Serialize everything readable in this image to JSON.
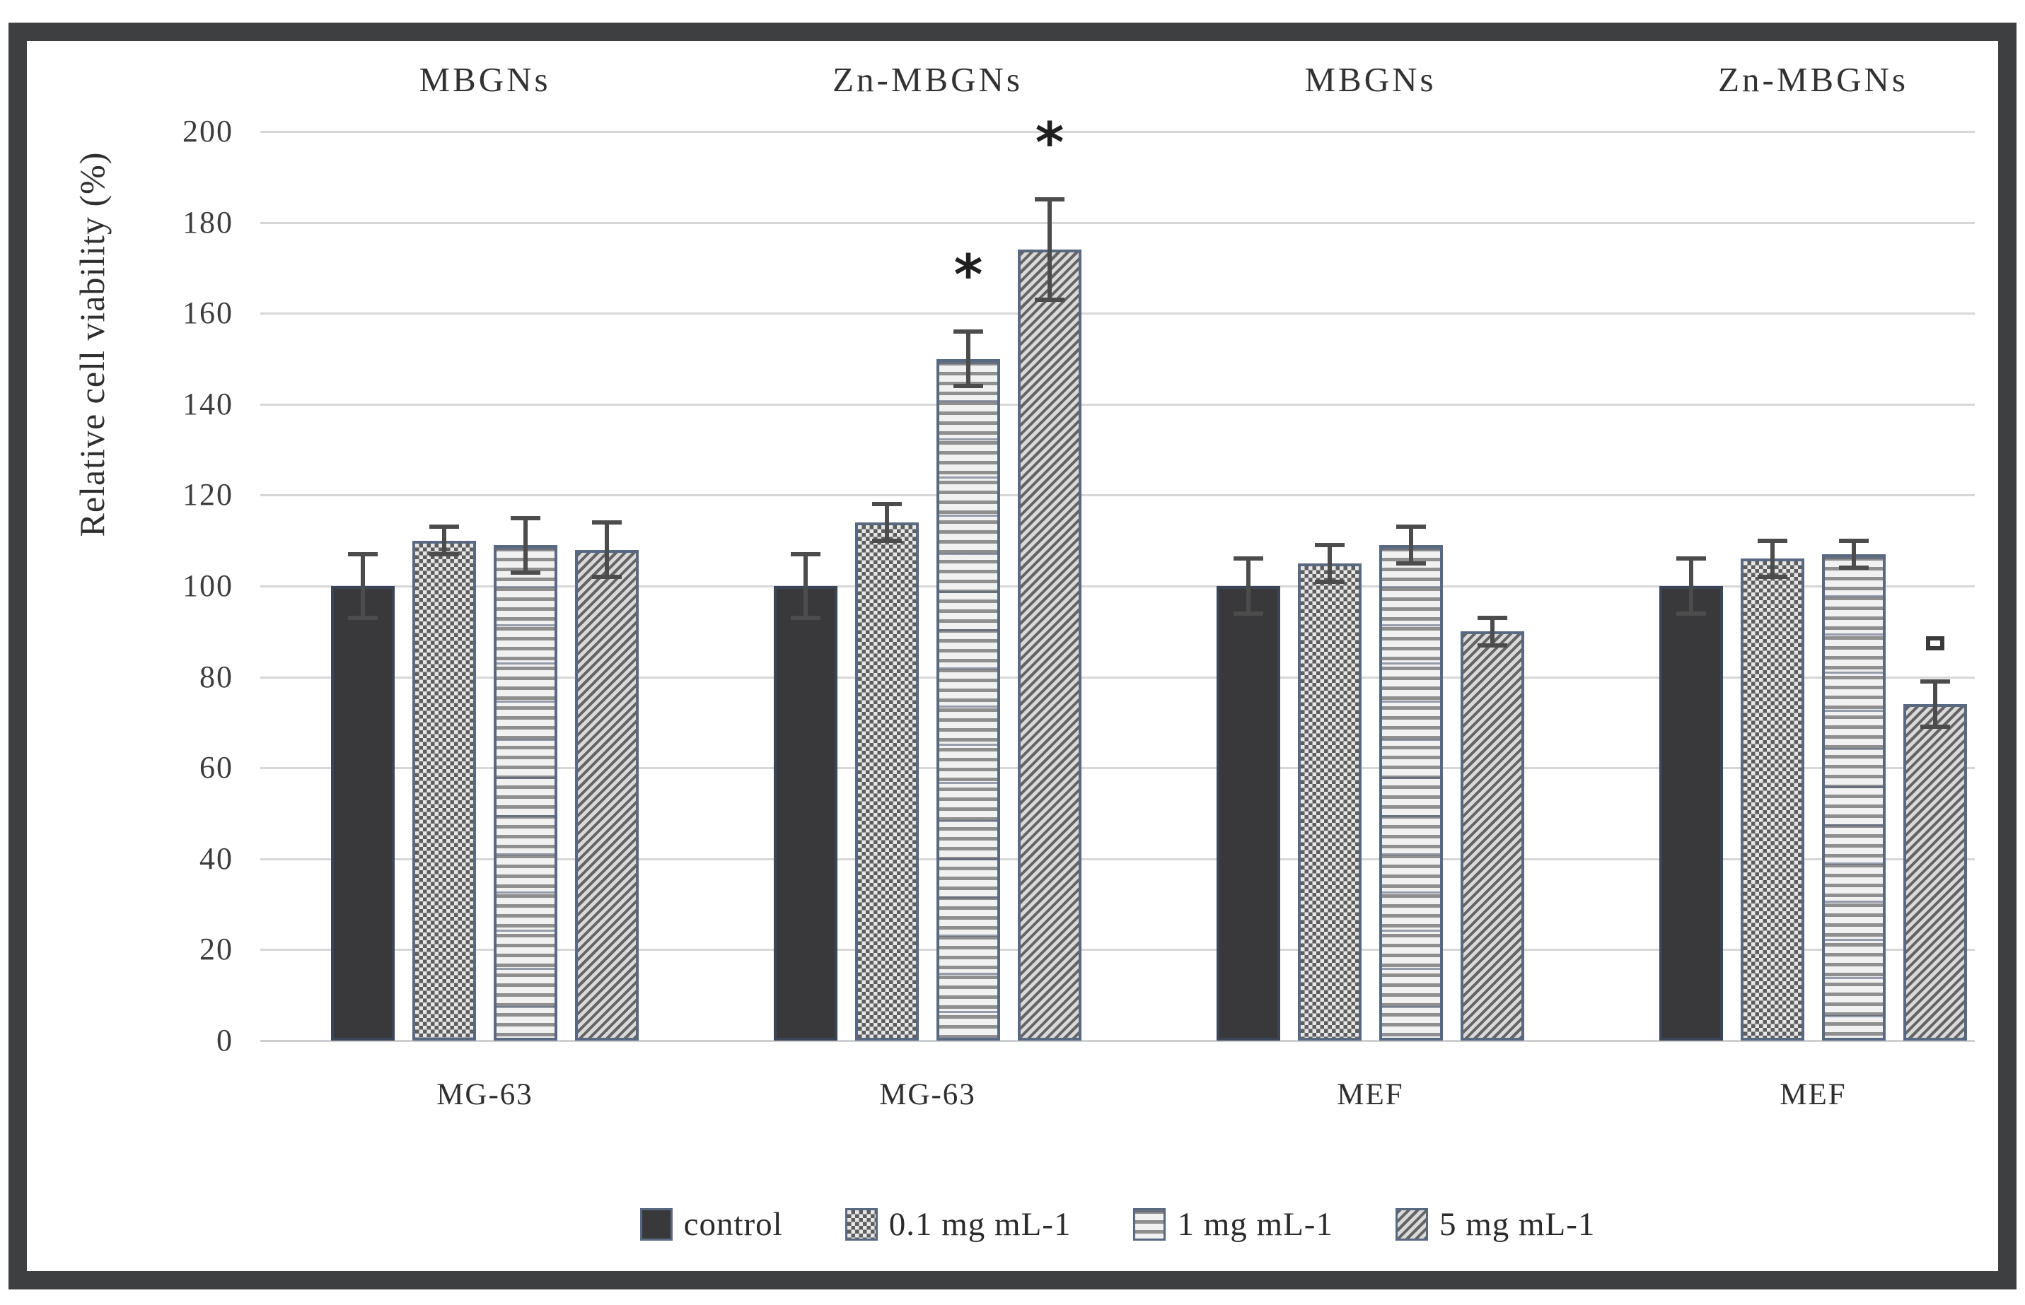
{
  "chart_data": {
    "type": "bar",
    "title": "",
    "xlabel": "",
    "ylabel": "Relative cell viability (%)",
    "ylim": [
      0,
      200
    ],
    "yticks": [
      0,
      20,
      40,
      60,
      80,
      100,
      120,
      140,
      160,
      180,
      200
    ],
    "grid": true,
    "legend_position": "bottom",
    "series": [
      "control",
      "0.1 mg mL-1",
      "1 mg mL-1",
      "5 mg mL-1"
    ],
    "groups": [
      {
        "panel": "MBGNs",
        "cell": "MG-63",
        "values": [
          100,
          110,
          109,
          108
        ],
        "errors": [
          7,
          3,
          6,
          6
        ],
        "markers": [
          null,
          null,
          null,
          null
        ]
      },
      {
        "panel": "Zn-MBGNs",
        "cell": "MG-63",
        "values": [
          100,
          114,
          150,
          174
        ],
        "errors": [
          7,
          4,
          6,
          11
        ],
        "markers": [
          null,
          null,
          "star",
          "star"
        ]
      },
      {
        "panel": "MBGNs",
        "cell": "MEF",
        "values": [
          100,
          105,
          109,
          90
        ],
        "errors": [
          6,
          4,
          4,
          3
        ],
        "markers": [
          null,
          null,
          null,
          null
        ]
      },
      {
        "panel": "Zn-MBGNs",
        "cell": "MEF",
        "values": [
          100,
          106,
          107,
          74
        ],
        "errors": [
          6,
          4,
          3,
          5
        ],
        "markers": [
          null,
          null,
          null,
          "square"
        ]
      }
    ],
    "annotation_symbols": {
      "star": "*",
      "square": "□"
    }
  }
}
